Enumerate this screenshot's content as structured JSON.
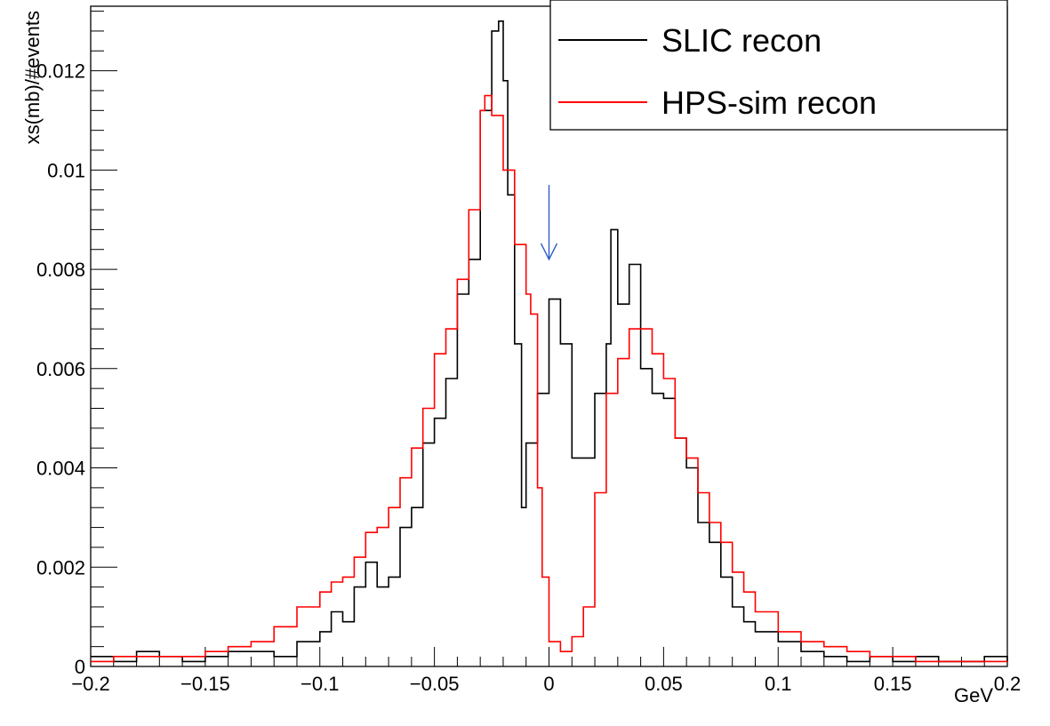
{
  "chart_data": {
    "type": "line",
    "xlabel": "GeV",
    "ylabel": "xs(mb)/#events",
    "xlim": [
      -0.2,
      0.2
    ],
    "ylim": [
      0,
      0.0133
    ],
    "x_ticks": [
      "−0.2",
      "−0.15",
      "−0.1",
      "−0.05",
      "0",
      "0.05",
      "0.1",
      "0.15",
      "0.2"
    ],
    "y_ticks": [
      "0",
      "0.002",
      "0.004",
      "0.006",
      "0.008",
      "0.01",
      "0.012"
    ],
    "y_tick_values": [
      0,
      0.002,
      0.004,
      0.006,
      0.008,
      0.01,
      0.012
    ],
    "x_tick_values": [
      -0.2,
      -0.15,
      -0.1,
      -0.05,
      0,
      0.05,
      0.1,
      0.15,
      0.2
    ],
    "legend_position": "top-right",
    "grid": false,
    "annotation": {
      "type": "arrow",
      "x": 0.0,
      "y_from": 0.0097,
      "y_to": 0.0082,
      "color": "#2f5cc8"
    },
    "series": [
      {
        "name": "SLIC recon",
        "color": "#000000",
        "x": [
          -0.2,
          -0.19,
          -0.18,
          -0.17,
          -0.16,
          -0.15,
          -0.14,
          -0.13,
          -0.12,
          -0.11,
          -0.1,
          -0.095,
          -0.09,
          -0.085,
          -0.08,
          -0.075,
          -0.07,
          -0.065,
          -0.06,
          -0.055,
          -0.05,
          -0.045,
          -0.04,
          -0.035,
          -0.03,
          -0.025,
          -0.022,
          -0.02,
          -0.018,
          -0.015,
          -0.012,
          -0.01,
          -0.005,
          0.0,
          0.005,
          0.01,
          0.015,
          0.02,
          0.025,
          0.027,
          0.03,
          0.035,
          0.04,
          0.045,
          0.05,
          0.055,
          0.06,
          0.065,
          0.07,
          0.075,
          0.08,
          0.085,
          0.09,
          0.1,
          0.11,
          0.12,
          0.13,
          0.14,
          0.15,
          0.16,
          0.17,
          0.18,
          0.19,
          0.2
        ],
        "y": [
          0.0002,
          0.0001,
          0.0003,
          0.0002,
          0.0001,
          0.0002,
          0.0003,
          0.0003,
          0.0002,
          0.0005,
          0.0007,
          0.0011,
          0.0009,
          0.0016,
          0.0021,
          0.0016,
          0.0018,
          0.0028,
          0.0032,
          0.0045,
          0.005,
          0.0058,
          0.0075,
          0.0082,
          0.0112,
          0.0128,
          0.013,
          0.0118,
          0.0095,
          0.0065,
          0.0032,
          0.0045,
          0.0055,
          0.0074,
          0.0065,
          0.0042,
          0.0042,
          0.0055,
          0.0065,
          0.0088,
          0.0073,
          0.0081,
          0.006,
          0.0055,
          0.0054,
          0.0046,
          0.004,
          0.0029,
          0.0025,
          0.0018,
          0.0012,
          0.0009,
          0.0007,
          0.0005,
          0.0003,
          0.0002,
          0.0001,
          0.0002,
          0.0001,
          0.0002,
          0.0001,
          0.0001,
          0.0002,
          0.0001
        ]
      },
      {
        "name": "HPS-sim recon",
        "color": "#ff0000",
        "x": [
          -0.2,
          -0.19,
          -0.18,
          -0.17,
          -0.16,
          -0.15,
          -0.14,
          -0.13,
          -0.12,
          -0.11,
          -0.1,
          -0.095,
          -0.09,
          -0.085,
          -0.08,
          -0.075,
          -0.07,
          -0.065,
          -0.06,
          -0.055,
          -0.05,
          -0.045,
          -0.04,
          -0.035,
          -0.03,
          -0.028,
          -0.025,
          -0.02,
          -0.015,
          -0.01,
          -0.008,
          -0.005,
          -0.003,
          0.0,
          0.005,
          0.01,
          0.015,
          0.02,
          0.025,
          0.03,
          0.035,
          0.04,
          0.045,
          0.05,
          0.055,
          0.06,
          0.065,
          0.07,
          0.075,
          0.08,
          0.085,
          0.09,
          0.1,
          0.11,
          0.12,
          0.13,
          0.14,
          0.15,
          0.16,
          0.17,
          0.18,
          0.19,
          0.2
        ],
        "y": [
          0.0001,
          0.0002,
          0.0002,
          0.0002,
          0.0002,
          0.0003,
          0.0004,
          0.0005,
          0.0008,
          0.0012,
          0.0015,
          0.0017,
          0.0018,
          0.0022,
          0.0027,
          0.0028,
          0.0032,
          0.0038,
          0.0044,
          0.0052,
          0.0063,
          0.0068,
          0.0078,
          0.0092,
          0.0112,
          0.0115,
          0.0111,
          0.01,
          0.0085,
          0.0075,
          0.0071,
          0.0036,
          0.0018,
          0.0005,
          0.0003,
          0.0006,
          0.0012,
          0.0035,
          0.0055,
          0.0062,
          0.0068,
          0.0068,
          0.0063,
          0.0058,
          0.0046,
          0.0042,
          0.0035,
          0.0029,
          0.0025,
          0.0019,
          0.0015,
          0.0011,
          0.0007,
          0.0005,
          0.0004,
          0.0003,
          0.0002,
          0.0002,
          0.0001,
          0.0001,
          0.0001,
          0.0001,
          0.0001
        ]
      }
    ]
  }
}
